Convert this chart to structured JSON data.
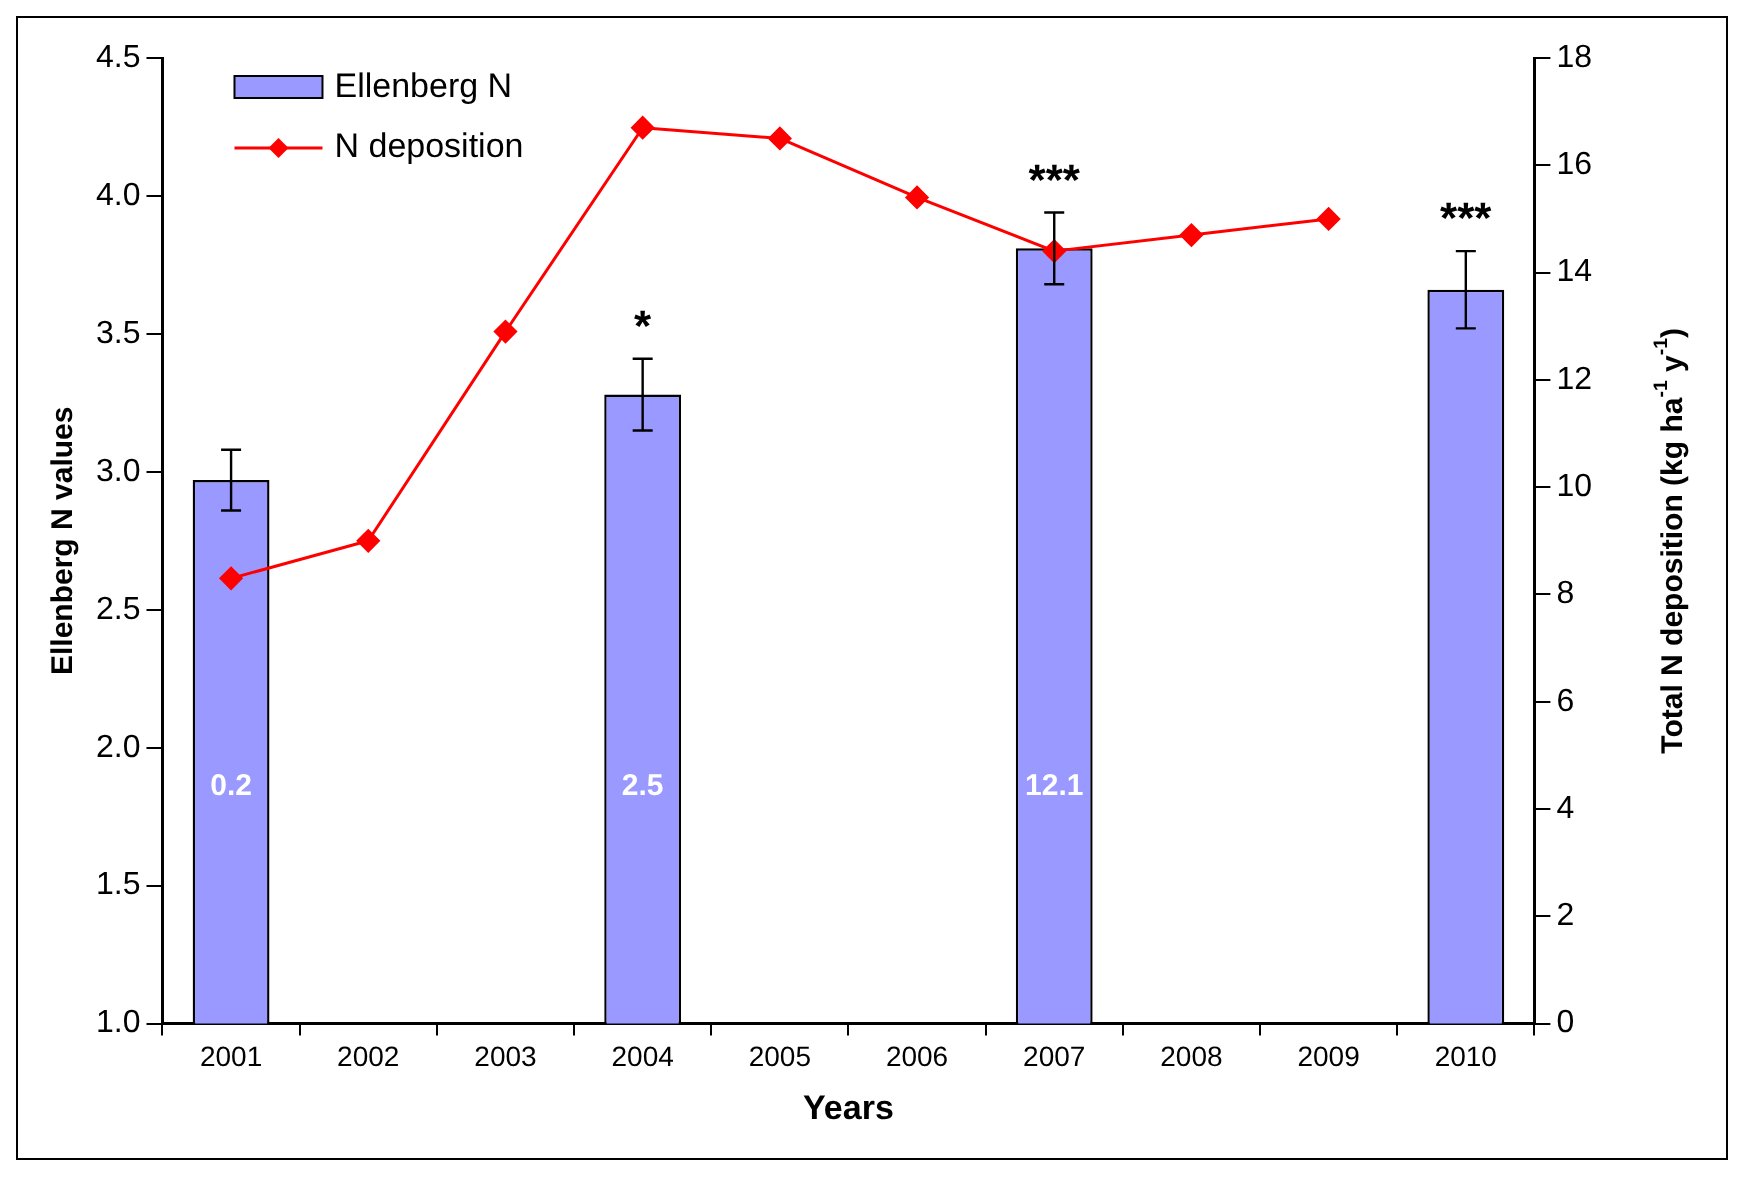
{
  "chart_data": {
    "type": "bar",
    "xlabel": "Years",
    "ylabel": "Ellenberg N values",
    "y2label": "Total N deposition (kg ha$^{-1}$ y$^{-1}$)",
    "categories": [
      "2001",
      "2002",
      "2003",
      "2004",
      "2005",
      "2006",
      "2007",
      "2008",
      "2009",
      "2010"
    ],
    "series": [
      {
        "name": "Ellenberg N",
        "color": "#9999ff",
        "values": [
          2.97,
          null,
          null,
          3.28,
          null,
          null,
          3.81,
          null,
          null,
          3.66
        ],
        "errors": [
          0.11,
          null,
          null,
          0.13,
          null,
          null,
          0.13,
          null,
          null,
          0.14
        ]
      },
      {
        "name": "N deposition",
        "type": "line",
        "axis": "y2",
        "color": "#ff0000",
        "marker": "diamond",
        "values": [
          8.3,
          9.0,
          12.9,
          16.7,
          16.5,
          15.4,
          14.4,
          14.7,
          15.0,
          null
        ]
      }
    ],
    "ylim": [
      1,
      4.5
    ],
    "yticks": [
      {
        "value": 1,
        "label": "1.0"
      },
      1.5,
      {
        "value": 2,
        "label": "2.0"
      },
      2.5,
      {
        "value": 3,
        "label": "3.0"
      },
      3.5,
      {
        "value": 4,
        "label": "4.0"
      },
      4.5
    ],
    "y2lim": [
      0,
      18
    ],
    "y2ticks": [
      0,
      2,
      4,
      6,
      8,
      10,
      12,
      14,
      16,
      18
    ],
    "grid": false,
    "legend": "top left",
    "annotations": [
      "0.2",
      "2.5",
      "12.1",
      "*",
      "***",
      "***"
    ]
  }
}
